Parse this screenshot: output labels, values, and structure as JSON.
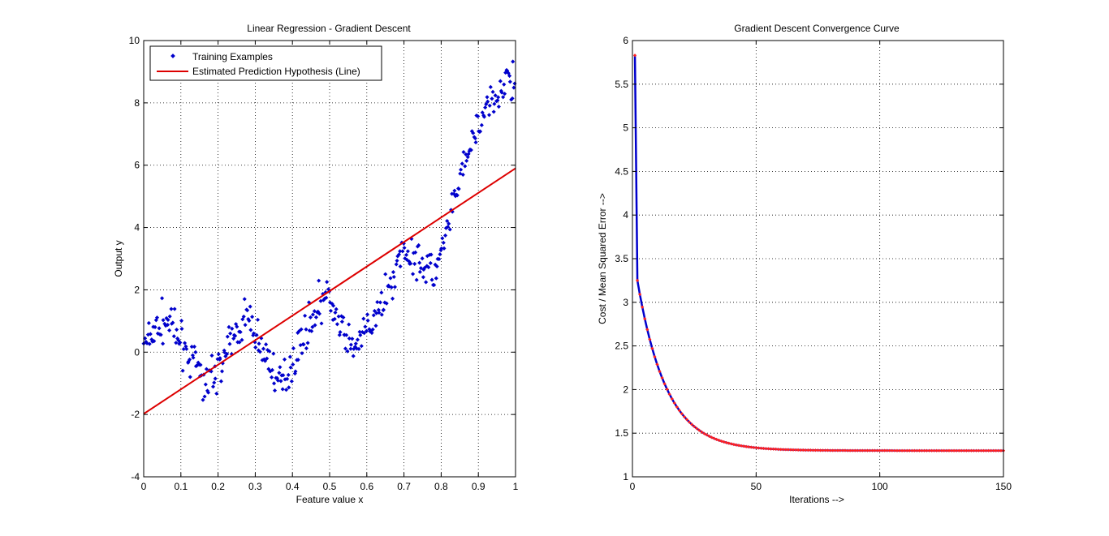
{
  "figure": {
    "background": "#ffffff"
  },
  "chart_data": [
    {
      "type": "scatter",
      "title": "Linear Regression - Gradient Descent",
      "xlabel": "Feature value x",
      "ylabel": "Output y",
      "xlim": [
        0,
        1
      ],
      "ylim": [
        -4,
        10
      ],
      "xticks": [
        0,
        0.1,
        0.2,
        0.3,
        0.4,
        0.5,
        0.6,
        0.7,
        0.8,
        0.9,
        1
      ],
      "xtick_labels": [
        "0",
        "0.1",
        "0.2",
        "0.3",
        "0.4",
        "0.5",
        "0.6",
        "0.7",
        "0.8",
        "0.9",
        "1"
      ],
      "yticks": [
        -4,
        -2,
        0,
        2,
        4,
        6,
        8,
        10
      ],
      "ytick_labels": [
        "-4",
        "-2",
        "0",
        "2",
        "4",
        "6",
        "8",
        "10"
      ],
      "grid": true,
      "legend": {
        "position": "top-left",
        "entries": [
          {
            "label": "Training Examples",
            "marker": "point",
            "color": "#0000cc"
          },
          {
            "label": "Estimated Prediction Hypothesis (Line)",
            "marker": "line",
            "color": "#dd0000"
          }
        ]
      },
      "series": [
        {
          "name": "Training Examples",
          "color": "#0000cc",
          "trend": [
            [
              0,
              0.2
            ],
            [
              0.06,
              1.1
            ],
            [
              0.1,
              0.3
            ],
            [
              0.17,
              -1.0
            ],
            [
              0.22,
              -0.1
            ],
            [
              0.275,
              1.2
            ],
            [
              0.32,
              0.1
            ],
            [
              0.37,
              -1.1
            ],
            [
              0.44,
              0.8
            ],
            [
              0.49,
              1.9
            ],
            [
              0.56,
              0.0
            ],
            [
              0.63,
              1.2
            ],
            [
              0.7,
              3.3
            ],
            [
              0.74,
              3.0
            ],
            [
              0.78,
              2.5
            ],
            [
              0.81,
              3.5
            ],
            [
              0.85,
              5.5
            ],
            [
              0.9,
              7.3
            ],
            [
              0.95,
              8.2
            ],
            [
              1.0,
              9.0
            ]
          ],
          "count": 400,
          "spread": 0.42,
          "seed": 7
        },
        {
          "name": "Estimated Prediction Hypothesis (Line)",
          "color": "#dd0000",
          "points": [
            [
              0,
              -1.98
            ],
            [
              1,
              5.9
            ]
          ]
        }
      ]
    },
    {
      "type": "line",
      "title": "Gradient Descent Convergence Curve",
      "xlabel": "Iterations -->",
      "ylabel": "Cost / Mean Squared Error -->",
      "xlim": [
        0,
        150
      ],
      "ylim": [
        1,
        6
      ],
      "xticks": [
        0,
        50,
        100,
        150
      ],
      "xtick_labels": [
        "0",
        "50",
        "100",
        "150"
      ],
      "yticks": [
        1,
        1.5,
        2,
        2.5,
        3,
        3.5,
        4,
        4.5,
        5,
        5.5,
        6
      ],
      "ytick_labels": [
        "1",
        "1.5",
        "2",
        "2.5",
        "3",
        "3.5",
        "4",
        "4.5",
        "5",
        "5.5",
        "6"
      ],
      "grid": true,
      "series": [
        {
          "line_color": "#0000cc",
          "marker_color": "#ff2020",
          "x_start": 1,
          "x_end": 150,
          "y_first": 5.83,
          "y_second": 3.25,
          "asymptote": 1.3,
          "decay_start_value": 3.25,
          "decay_rate": 0.085
        }
      ]
    }
  ]
}
